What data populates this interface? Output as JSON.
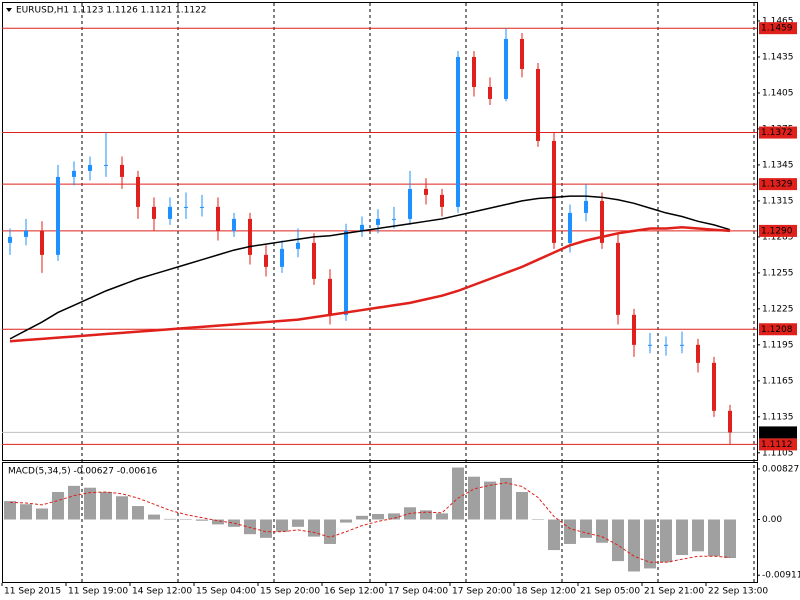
{
  "chart_data": [
    {
      "type": "candlestick",
      "header": "EURUSD,H1  1.1123 1.1126 1.1121 1.1122",
      "categories": [
        "11 Sep 2015",
        null,
        null,
        null,
        "11 Sep 19:00",
        null,
        null,
        null,
        "14 Sep 12:00",
        null,
        null,
        null,
        "15 Sep 04:00",
        null,
        null,
        null,
        "15 Sep 20:00",
        null,
        null,
        null,
        "16 Sep 12:00",
        null,
        null,
        null,
        "17 Sep 04:00",
        null,
        null,
        null,
        "17 Sep 20:00",
        null,
        null,
        null,
        "18 Sep 12:00",
        null,
        null,
        null,
        "21 Sep 05:00",
        null,
        null,
        null,
        "21 Sep 21:00",
        null,
        null,
        null,
        "22 Sep 13:00",
        null
      ],
      "open": [
        1.128,
        1.1285,
        1.129,
        1.127,
        1.1335,
        1.134,
        1.1345,
        1.1345,
        1.1335,
        1.131,
        1.13,
        1.131,
        1.131,
        1.131,
        1.129,
        1.13,
        1.127,
        1.126,
        1.1275,
        1.128,
        1.125,
        1.122,
        1.129,
        1.1295,
        1.13,
        1.13,
        1.1325,
        1.132,
        1.131,
        1.1435,
        1.141,
        1.14,
        1.145,
        1.1425,
        1.1365,
        1.128,
        1.1305,
        1.1315,
        1.128,
        1.122,
        1.1195,
        1.1195,
        1.1195,
        1.1195,
        1.118,
        1.114
      ],
      "high": [
        1.1292,
        1.13,
        1.1298,
        1.1345,
        1.1348,
        1.1352,
        1.1372,
        1.1352,
        1.134,
        1.1318,
        1.1318,
        1.1322,
        1.132,
        1.1318,
        1.1305,
        1.1305,
        1.1278,
        1.1282,
        1.1292,
        1.1288,
        1.1258,
        1.1296,
        1.1302,
        1.1308,
        1.131,
        1.134,
        1.1334,
        1.1325,
        1.144,
        1.144,
        1.1418,
        1.1459,
        1.1455,
        1.143,
        1.1372,
        1.1312,
        1.1329,
        1.1322,
        1.1288,
        1.1225,
        1.1205,
        1.1202,
        1.1206,
        1.12,
        1.1185,
        1.1145
      ],
      "low": [
        1.127,
        1.1278,
        1.1255,
        1.1265,
        1.1328,
        1.1332,
        1.1335,
        1.1325,
        1.13,
        1.129,
        1.1295,
        1.13,
        1.1302,
        1.1282,
        1.1285,
        1.1262,
        1.1252,
        1.1255,
        1.1268,
        1.1245,
        1.1212,
        1.1215,
        1.1285,
        1.1288,
        1.1292,
        1.1295,
        1.1312,
        1.1302,
        1.1305,
        1.1402,
        1.1395,
        1.1398,
        1.1418,
        1.136,
        1.1275,
        1.1272,
        1.1298,
        1.1275,
        1.1212,
        1.1185,
        1.1188,
        1.1186,
        1.1188,
        1.1172,
        1.1135,
        1.1112
      ],
      "close": [
        1.1285,
        1.129,
        1.127,
        1.1335,
        1.134,
        1.1345,
        1.1345,
        1.1335,
        1.131,
        1.13,
        1.131,
        1.131,
        1.131,
        1.129,
        1.13,
        1.127,
        1.126,
        1.1275,
        1.128,
        1.125,
        1.122,
        1.129,
        1.1295,
        1.13,
        1.13,
        1.1325,
        1.132,
        1.131,
        1.1435,
        1.141,
        1.14,
        1.145,
        1.1425,
        1.1365,
        1.128,
        1.1305,
        1.1315,
        1.128,
        1.122,
        1.1195,
        1.1195,
        1.1195,
        1.1195,
        1.118,
        1.114,
        1.1122
      ],
      "up_color": "#1e90ff",
      "down_color": "#e0201a",
      "series": [
        {
          "color": "#000000",
          "values": [
            1.12,
            1.1207,
            1.1214,
            1.1222,
            1.1228,
            1.1234,
            1.124,
            1.1245,
            1.125,
            1.1254,
            1.1258,
            1.1262,
            1.1266,
            1.127,
            1.1274,
            1.1277,
            1.1279,
            1.1281,
            1.1283,
            1.1285,
            1.1286,
            1.1288,
            1.129,
            1.1292,
            1.1294,
            1.1296,
            1.1298,
            1.13,
            1.1303,
            1.1306,
            1.1309,
            1.1312,
            1.1315,
            1.1317,
            1.1318,
            1.1319,
            1.1319,
            1.1318,
            1.1316,
            1.1313,
            1.1309,
            1.1305,
            1.1302,
            1.1298,
            1.1295,
            1.1291
          ]
        },
        {
          "color": "#e0201a",
          "values": [
            1.1198,
            1.1199,
            1.12,
            1.1201,
            1.1202,
            1.1203,
            1.1204,
            1.1205,
            1.1206,
            1.1207,
            1.1208,
            1.1209,
            1.121,
            1.1211,
            1.1212,
            1.1213,
            1.1214,
            1.1215,
            1.1216,
            1.1218,
            1.122,
            1.1222,
            1.1224,
            1.1226,
            1.1228,
            1.123,
            1.1233,
            1.1236,
            1.124,
            1.1245,
            1.125,
            1.1255,
            1.126,
            1.1266,
            1.1272,
            1.1278,
            1.1282,
            1.1285,
            1.1288,
            1.129,
            1.1292,
            1.1292,
            1.1293,
            1.1292,
            1.1291,
            1.129
          ]
        }
      ],
      "levels": [
        1.1459,
        1.1372,
        1.1329,
        {
          "value": 1.129,
          "label": "1.1290"
        },
        1.1208,
        1.1112
      ],
      "level_color": "#e0201a",
      "current_price": 1.1122,
      "ylim": [
        1.1099,
        1.148
      ],
      "yticks": [
        1.1465,
        1.1435,
        1.1405,
        1.1375,
        1.1345,
        1.1315,
        1.1285,
        1.1255,
        1.1225,
        1.1195,
        1.1165,
        1.1135,
        1.1105
      ]
    },
    {
      "type": "macd",
      "header": "MACD(5,34,5) -0.00627 -0.00616",
      "values": [
        0.003,
        0.0025,
        0.0018,
        0.0045,
        0.0055,
        0.0052,
        0.0045,
        0.0038,
        0.0022,
        0.0008,
        0.0001,
        0.0,
        -0.0002,
        -0.0008,
        -0.0012,
        -0.0024,
        -0.003,
        -0.002,
        -0.0012,
        -0.0028,
        -0.004,
        -0.0005,
        0.0006,
        0.0009,
        0.001,
        0.002,
        0.0015,
        0.001,
        0.0085,
        0.007,
        0.0062,
        0.0068,
        0.0045,
        0.0,
        -0.005,
        -0.004,
        -0.003,
        -0.0038,
        -0.0068,
        -0.0085,
        -0.008,
        -0.007,
        -0.0058,
        -0.0052,
        -0.006,
        -0.0063
      ],
      "color": "#a0a0a0",
      "signal": [
        0.0028,
        0.0027,
        0.0024,
        0.0031,
        0.0039,
        0.0044,
        0.0045,
        0.0042,
        0.0035,
        0.0025,
        0.0015,
        0.0008,
        0.0003,
        -0.0002,
        -0.0006,
        -0.0013,
        -0.002,
        -0.002,
        -0.0017,
        -0.0021,
        -0.0029,
        -0.002,
        -0.001,
        -0.0003,
        0.0002,
        0.001,
        0.0012,
        0.0011,
        0.0035,
        0.005,
        0.0056,
        0.006,
        0.0054,
        0.0036,
        0.0005,
        -0.0015,
        -0.0022,
        -0.0028,
        -0.0042,
        -0.006,
        -0.007,
        -0.007,
        -0.0065,
        -0.006,
        -0.006,
        -0.0062
      ],
      "signal_color": "#e0201a",
      "ylim": [
        -0.01022,
        0.00924
      ],
      "yticks": [
        0.00827,
        {
          "value": 0,
          "label": "0.00"
        },
        -0.00911
      ]
    }
  ]
}
